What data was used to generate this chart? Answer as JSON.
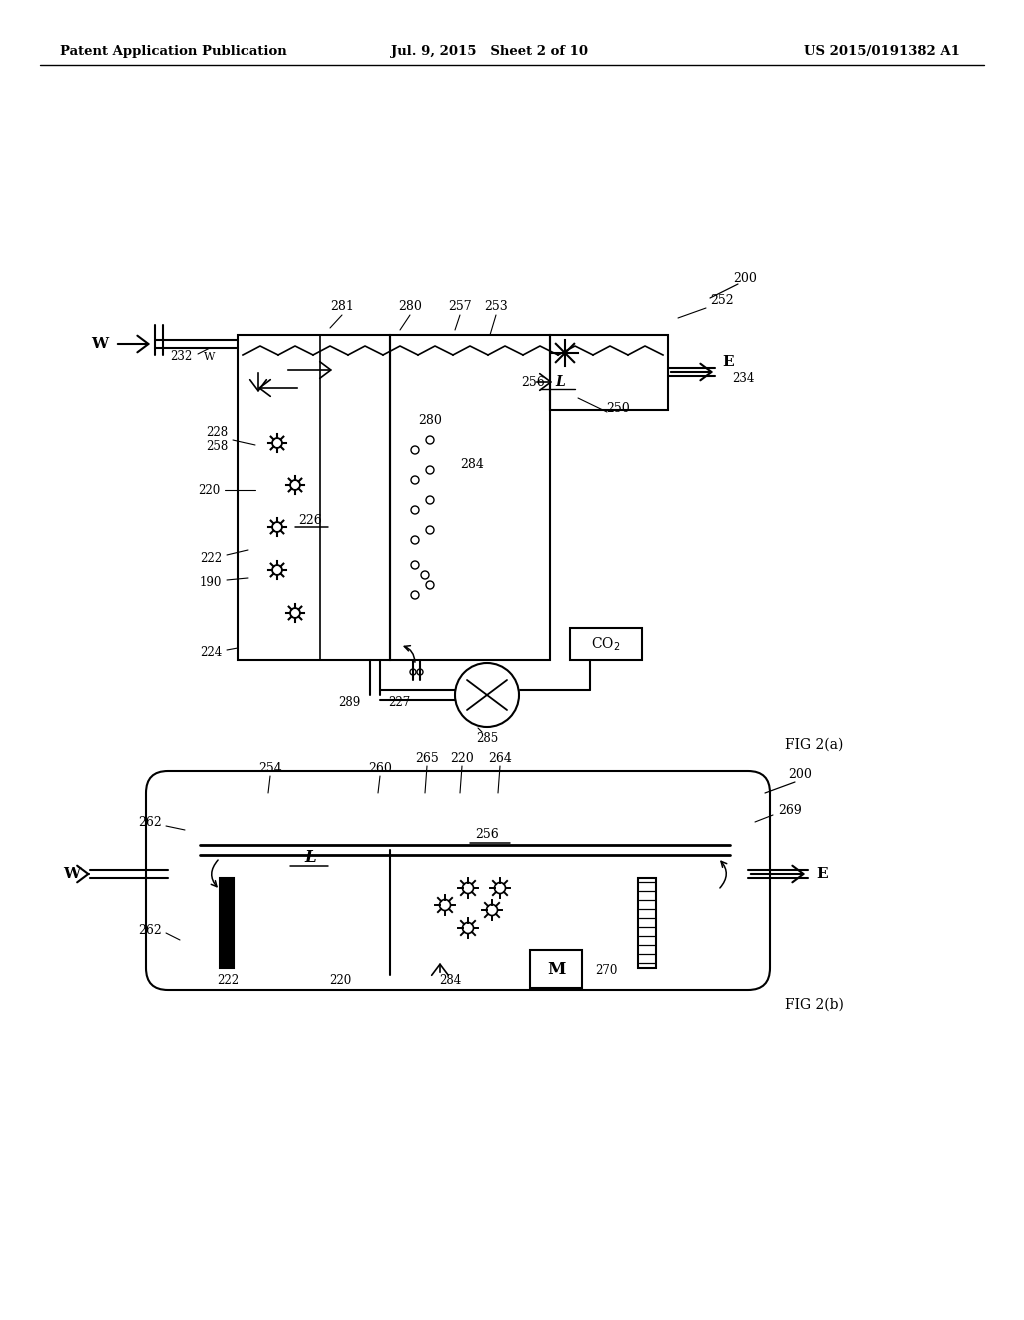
{
  "background_color": "#ffffff",
  "header_left": "Patent Application Publication",
  "header_mid": "Jul. 9, 2015   Sheet 2 of 10",
  "header_right": "US 2015/0191382 A1",
  "fig2a_label": "FIG 2(a)",
  "fig2b_label": "FIG 2(b)"
}
